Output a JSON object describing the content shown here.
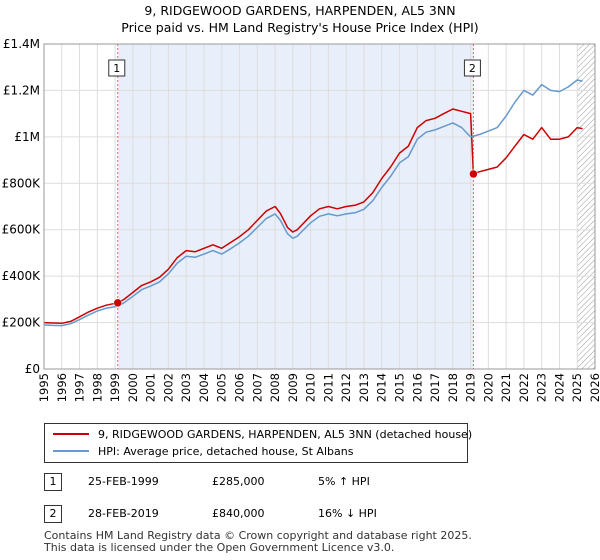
{
  "chart_data": {
    "type": "line",
    "title_line1": "9, RIDGEWOOD GARDENS, HARPENDEN, AL5 3NN",
    "title_line2": "Price paid vs. HM Land Registry's House Price Index (HPI)",
    "y_ticks": [
      {
        "value": 0,
        "label": "£0"
      },
      {
        "value": 200000,
        "label": "£200K"
      },
      {
        "value": 400000,
        "label": "£400K"
      },
      {
        "value": 600000,
        "label": "£600K"
      },
      {
        "value": 800000,
        "label": "£800K"
      },
      {
        "value": 1000000,
        "label": "£1M"
      },
      {
        "value": 1200000,
        "label": "£1.2M"
      },
      {
        "value": 1400000,
        "label": "£1.4M"
      }
    ],
    "x_ticks": [
      "1995",
      "1996",
      "1997",
      "1998",
      "1999",
      "2000",
      "2001",
      "2002",
      "2003",
      "2004",
      "2005",
      "2006",
      "2007",
      "2008",
      "2009",
      "2010",
      "2011",
      "2012",
      "2013",
      "2014",
      "2015",
      "2016",
      "2017",
      "2018",
      "2019",
      "2020",
      "2021",
      "2022",
      "2023",
      "2024",
      "2025",
      "2026"
    ],
    "xlim": [
      1995,
      2026
    ],
    "ylim": [
      0,
      1400000
    ],
    "grid": true,
    "shaded_region": [
      1999.15,
      2019.16
    ],
    "hatched_from": 2025.0,
    "series": [
      {
        "name": "9, RIDGEWOOD GARDENS, HARPENDEN, AL5 3NN (detached house)",
        "color": "#cc0000",
        "x": [
          1995,
          1995.5,
          1996,
          1996.5,
          1997,
          1997.5,
          1998,
          1998.5,
          1999.15,
          1999.5,
          2000,
          2000.5,
          2001,
          2001.5,
          2002,
          2002.5,
          2003,
          2003.5,
          2004,
          2004.5,
          2005,
          2005.5,
          2006,
          2006.5,
          2007,
          2007.5,
          2008,
          2008.3,
          2008.7,
          2009,
          2009.25,
          2009.5,
          2010,
          2010.5,
          2011,
          2011.5,
          2012,
          2012.5,
          2013,
          2013.5,
          2014,
          2014.5,
          2015,
          2015.5,
          2016,
          2016.5,
          2017,
          2017.5,
          2018,
          2018.5,
          2019.0,
          2019.16,
          2019.5,
          2020,
          2020.5,
          2021,
          2021.5,
          2022,
          2022.5,
          2023,
          2023.5,
          2024,
          2024.5,
          2025,
          2025.3
        ],
        "values": [
          200000,
          198000,
          197000,
          205000,
          225000,
          245000,
          262000,
          275000,
          285000,
          300000,
          330000,
          360000,
          375000,
          395000,
          430000,
          480000,
          510000,
          505000,
          520000,
          535000,
          520000,
          545000,
          570000,
          600000,
          640000,
          680000,
          700000,
          670000,
          610000,
          590000,
          600000,
          620000,
          660000,
          690000,
          700000,
          690000,
          700000,
          705000,
          720000,
          760000,
          820000,
          870000,
          930000,
          960000,
          1040000,
          1070000,
          1080000,
          1100000,
          1120000,
          1110000,
          1100000,
          840000,
          850000,
          860000,
          870000,
          910000,
          960000,
          1010000,
          990000,
          1040000,
          990000,
          990000,
          1000000,
          1040000,
          1035000
        ]
      },
      {
        "name": "HPI: Average price, detached house, St Albans",
        "color": "#6699cc",
        "x": [
          1995,
          1995.5,
          1996,
          1996.5,
          1997,
          1997.5,
          1998,
          1998.5,
          1999.15,
          1999.5,
          2000,
          2000.5,
          2001,
          2001.5,
          2002,
          2002.5,
          2003,
          2003.5,
          2004,
          2004.5,
          2005,
          2005.5,
          2006,
          2006.5,
          2007,
          2007.5,
          2008,
          2008.3,
          2008.7,
          2009,
          2009.25,
          2009.5,
          2010,
          2010.5,
          2011,
          2011.5,
          2012,
          2012.5,
          2013,
          2013.5,
          2014,
          2014.5,
          2015,
          2015.5,
          2016,
          2016.5,
          2017,
          2017.5,
          2018,
          2018.5,
          2019.0,
          2019.5,
          2020,
          2020.5,
          2021,
          2021.5,
          2022,
          2022.5,
          2023,
          2023.5,
          2024,
          2024.5,
          2025,
          2025.3
        ],
        "values": [
          190000,
          188000,
          187000,
          195000,
          213000,
          232000,
          250000,
          262000,
          271000,
          285000,
          313000,
          342000,
          357000,
          375000,
          410000,
          456000,
          486000,
          481000,
          495000,
          510000,
          495000,
          518000,
          543000,
          572000,
          610000,
          648000,
          668000,
          640000,
          583000,
          563000,
          572000,
          592000,
          630000,
          658000,
          668000,
          660000,
          668000,
          673000,
          688000,
          725000,
          782000,
          830000,
          888000,
          915000,
          990000,
          1020000,
          1030000,
          1045000,
          1060000,
          1040000,
          1000000,
          1010000,
          1025000,
          1040000,
          1090000,
          1150000,
          1200000,
          1180000,
          1225000,
          1200000,
          1195000,
          1215000,
          1245000,
          1240000
        ]
      }
    ],
    "sales": [
      {
        "marker": "1",
        "x": 1999.15,
        "value": 285000
      },
      {
        "marker": "2",
        "x": 2019.16,
        "value": 840000
      }
    ]
  },
  "legend": {
    "property_label": "9, RIDGEWOOD GARDENS, HARPENDEN, AL5 3NN (detached house)",
    "hpi_label": "HPI: Average price, detached house, St Albans"
  },
  "transactions": [
    {
      "marker": "1",
      "date": "25-FEB-1999",
      "price": "£285,000",
      "hpi": "5% ↑ HPI"
    },
    {
      "marker": "2",
      "date": "28-FEB-2019",
      "price": "£840,000",
      "hpi": "16% ↓ HPI"
    }
  ],
  "footer": {
    "line1": "Contains HM Land Registry data © Crown copyright and database right 2025.",
    "line2": "This data is licensed under the Open Government Licence v3.0."
  },
  "colors": {
    "property_line": "#cc0000",
    "hpi_line": "#6699cc",
    "shading": "#e8eefa",
    "grid": "#dddddd",
    "sale_marker_line": "#dd6666"
  }
}
